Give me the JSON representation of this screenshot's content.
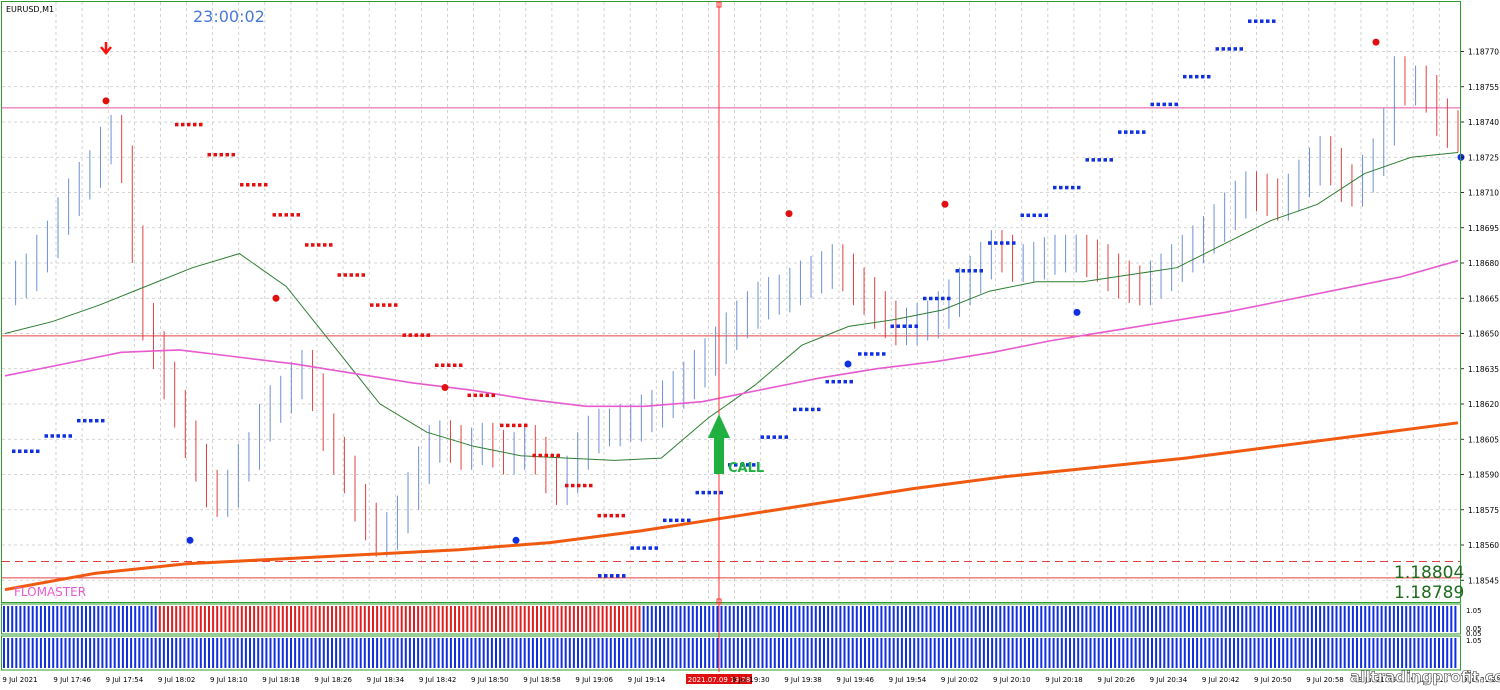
{
  "window": {
    "symbol_label": "EURUSD,M1",
    "clock": "23:00:02"
  },
  "colors": {
    "up_bar": "#6c8fd6",
    "down_bar": "#e04040",
    "ma_fast": "#2e7d32",
    "ma_mid": "#e85ad0",
    "ma_slow": "#f05a10",
    "resistance": "#e050a0",
    "stop_blue": "#1030e0",
    "stop_red": "#e01010",
    "arrow_call": "#20b040",
    "grid": "#c8c8c8",
    "frame": "#2e9e2e"
  },
  "chart_data": {
    "type": "line",
    "title": "EURUSD,M1",
    "ylim": [
      1.1854,
      1.1878
    ],
    "y_ticks": [
      "1.18770",
      "1.18755",
      "1.18740",
      "1.18725",
      "1.18710",
      "1.18695",
      "1.18680",
      "1.18665",
      "1.18650",
      "1.18635",
      "1.18620",
      "1.18605",
      "1.18590",
      "1.18575",
      "1.18560",
      "1.18545"
    ],
    "x_ticks": [
      "9 Jul 2021",
      "9 Jul 17:46",
      "9 Jul 17:54",
      "9 Jul 18:02",
      "9 Jul 18:10",
      "9 Jul 18:18",
      "9 Jul 18:26",
      "9 Jul 18:34",
      "9 Jul 18:42",
      "9 Jul 18:50",
      "9 Jul 18:58",
      "9 Jul 19:06",
      "9 Jul 19:14",
      "2021.07.09 19:28",
      "9 Jul 19:30",
      "9 Jul 19:38",
      "9 Jul 19:46",
      "9 Jul 19:54",
      "9 Jul 20:02",
      "9 Jul 20:10",
      "9 Jul 20:18",
      "9 Jul 20:26",
      "9 Jul 20:34",
      "9 Jul 20:42",
      "9 Jul 20:50",
      "9 Jul 20:58",
      "9 Jul 21:06",
      "9 Jul 21:14",
      "9 Jul 21:22"
    ],
    "cursor_time": "2021.07.09 19:28",
    "series": [
      {
        "kind": "close",
        "color_up": "#6c8fd6",
        "color_down": "#e04040",
        "values": [
          1.1867,
          1.18673,
          1.18676,
          1.18684,
          1.1869,
          1.187,
          1.18708,
          1.18715,
          1.1872,
          1.1873,
          1.18735,
          1.18722,
          1.18688,
          1.18655,
          1.18643,
          1.1863,
          1.18618,
          1.18605,
          1.18595,
          1.18584,
          1.1858,
          1.18584,
          1.18595,
          1.186,
          1.18612,
          1.1862,
          1.18624,
          1.1863,
          1.18635,
          1.18625,
          1.18608,
          1.18598,
          1.1859,
          1.18578,
          1.1857,
          1.18563,
          1.18566,
          1.18573,
          1.18583,
          1.18594,
          1.18603,
          1.18605,
          1.18603,
          1.186,
          1.18602,
          1.18604,
          1.18601,
          1.18598,
          1.186,
          1.18603,
          1.18598,
          1.1859,
          1.18585,
          1.1859,
          1.186,
          1.18607,
          1.1861,
          1.1861,
          1.18612,
          1.18612,
          1.18616,
          1.18618,
          1.18622,
          1.18626,
          1.1863,
          1.18635,
          1.1864,
          1.18645,
          1.18651,
          1.18656,
          1.1866,
          1.18664,
          1.18666,
          1.18667,
          1.1867,
          1.18673,
          1.18675,
          1.18677,
          1.1868,
          1.18676,
          1.1867,
          1.18666,
          1.1866,
          1.18656,
          1.18653,
          1.18653,
          1.18655,
          1.18656,
          1.1866,
          1.18665,
          1.1867,
          1.18675,
          1.18681,
          1.18686,
          1.18684,
          1.1868,
          1.1868,
          1.18681,
          1.18683,
          1.18684,
          1.18684,
          1.18684,
          1.18682,
          1.1868,
          1.18676,
          1.18673,
          1.18671,
          1.1867,
          1.18673,
          1.18676,
          1.1868,
          1.18684,
          1.18688,
          1.18692,
          1.18697,
          1.18702,
          1.18707,
          1.18711,
          1.1871,
          1.18708,
          1.18706,
          1.1871,
          1.18716,
          1.18721,
          1.18726,
          1.18721,
          1.18714,
          1.18712,
          1.18718,
          1.18725,
          1.18738,
          1.1876,
          1.18755,
          1.18756,
          1.18752,
          1.18742,
          1.18737,
          1.18735
        ]
      },
      {
        "name": "",
        "kind": "ma",
        "color": "#2e7d32",
        "values": [
          1.1865,
          1.18655,
          1.18662,
          1.1867,
          1.18678,
          1.18684,
          1.1867,
          1.18645,
          1.1862,
          1.18608,
          1.18602,
          1.18598,
          1.18597,
          1.18596,
          1.18597,
          1.18614,
          1.18628,
          1.18645,
          1.18653,
          1.18656,
          1.1866,
          1.18668,
          1.18672,
          1.18672,
          1.18675,
          1.18678,
          1.18688,
          1.18698,
          1.18705,
          1.18718,
          1.18725,
          1.18727
        ]
      },
      {
        "name": "",
        "kind": "ma",
        "color": "#e85ad0",
        "values": [
          1.18632,
          1.18637,
          1.18642,
          1.18643,
          1.1864,
          1.18637,
          1.18633,
          1.18629,
          1.18626,
          1.18622,
          1.18619,
          1.18619,
          1.18621,
          1.18626,
          1.18631,
          1.18635,
          1.18638,
          1.18642,
          1.18647,
          1.18651,
          1.18655,
          1.18659,
          1.18664,
          1.18669,
          1.18674,
          1.18681
        ]
      },
      {
        "name": "",
        "kind": "ma",
        "color": "#f05a10",
        "values": [
          1.18541,
          1.18548,
          1.18552,
          1.18554,
          1.18556,
          1.18558,
          1.18561,
          1.18566,
          1.18572,
          1.18578,
          1.18584,
          1.18589,
          1.18593,
          1.18597,
          1.18602,
          1.18607,
          1.18612
        ]
      }
    ],
    "levels": [
      {
        "value": 1.18746,
        "color": "#e050a0"
      },
      {
        "value": 1.18649,
        "color": "#e04040"
      },
      {
        "value": 1.18553,
        "color": "#e04040",
        "dashed": true
      },
      {
        "value": 1.18546,
        "color": "#e04040"
      }
    ],
    "level_labels": {
      "upper": "1.18804",
      "lower": "1.18789"
    },
    "annotations": [
      {
        "text": "CALL",
        "type": "arrow-up"
      },
      {
        "text": "FLOMASTER"
      }
    ],
    "sub_panels": [
      {
        "title": "",
        "scale": [
          "1.05",
          "0.05"
        ]
      },
      {
        "title": "",
        "scale": [
          "1.05",
          "0.05"
        ]
      }
    ]
  },
  "watermark": "alltradingprofit.com"
}
